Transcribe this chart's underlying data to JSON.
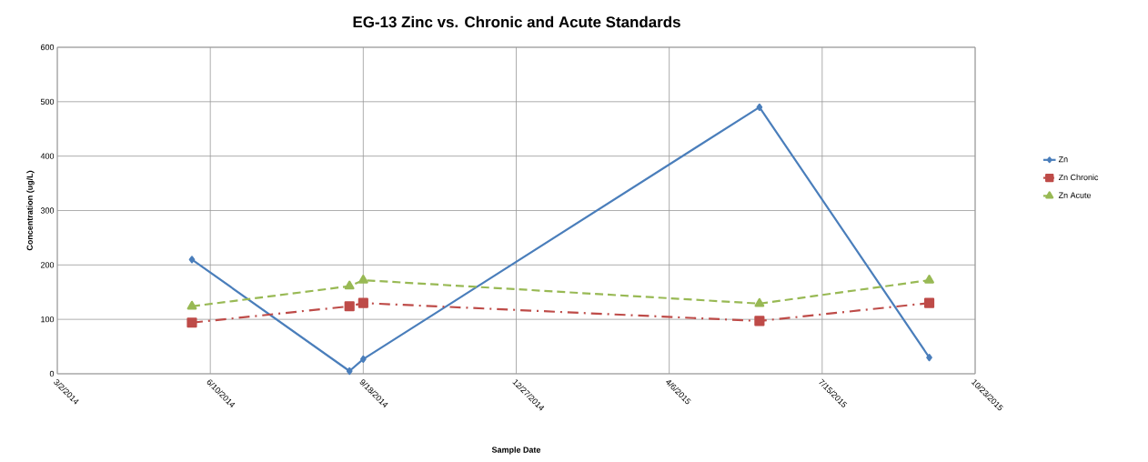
{
  "chart_data": {
    "type": "line",
    "title": "EG-13 Zinc vs. Chronic and Acute Standards",
    "xlabel": "Sample Date",
    "ylabel": "Concentration (ug/L)",
    "x": [
      "2014-05-29",
      "2014-09-09",
      "2014-09-18",
      "2015-06-04",
      "2015-09-23"
    ],
    "series": [
      {
        "name": "Zn",
        "color": "#4a7ebb",
        "values": [
          210,
          5,
          27,
          490,
          30
        ],
        "marker": "diamond",
        "line_style": "solid"
      },
      {
        "name": "Zn Chronic",
        "color": "#be4b48",
        "values": [
          94,
          124,
          130,
          97,
          130
        ],
        "marker": "square",
        "line_style": "dashdot"
      },
      {
        "name": "Zn Acute",
        "color": "#98b954",
        "values": [
          124,
          161,
          172,
          129,
          172
        ],
        "marker": "triangle",
        "line_style": "dashed"
      }
    ],
    "xlim": [
      "2014-03-02",
      "2015-10-23"
    ],
    "xticks": [
      {
        "value": "2014-03-02",
        "label": "3/2/2014"
      },
      {
        "value": "2014-06-10",
        "label": "6/10/2014"
      },
      {
        "value": "2014-09-18",
        "label": "9/18/2014"
      },
      {
        "value": "2014-12-27",
        "label": "12/27/2014"
      },
      {
        "value": "2015-04-06",
        "label": "4/6/2015"
      },
      {
        "value": "2015-07-15",
        "label": "7/15/2015"
      },
      {
        "value": "2015-10-23",
        "label": "10/23/2015"
      }
    ],
    "ylim": [
      0,
      600
    ],
    "yticks": [
      0,
      100,
      200,
      300,
      400,
      500,
      600
    ],
    "grid": true,
    "legend": "right"
  }
}
